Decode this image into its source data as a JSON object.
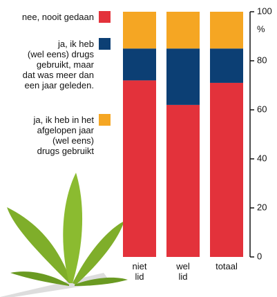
{
  "chart_data": {
    "type": "stacked_bar",
    "categories": [
      "niet\nlid",
      "wel\nlid",
      "totaal"
    ],
    "series": [
      {
        "name": "nee, nooit gedaan",
        "color": "#e3323b",
        "values": [
          72,
          62,
          71
        ]
      },
      {
        "name": "ja, ik heb\n(wel eens) drugs\ngebruikt, maar\ndat was meer dan\neen jaar geleden.",
        "color": "#0c3f74",
        "values": [
          13,
          23,
          14
        ]
      },
      {
        "name": "ja, ik heb in het\nafgelopen jaar\n(wel eens)\ndrugs gebruikt",
        "color": "#f5a623",
        "values": [
          15,
          15,
          15
        ]
      }
    ],
    "y_unit": "%",
    "ylim": [
      0,
      100
    ],
    "yticks": [
      0,
      20,
      40,
      60,
      80,
      100
    ]
  }
}
